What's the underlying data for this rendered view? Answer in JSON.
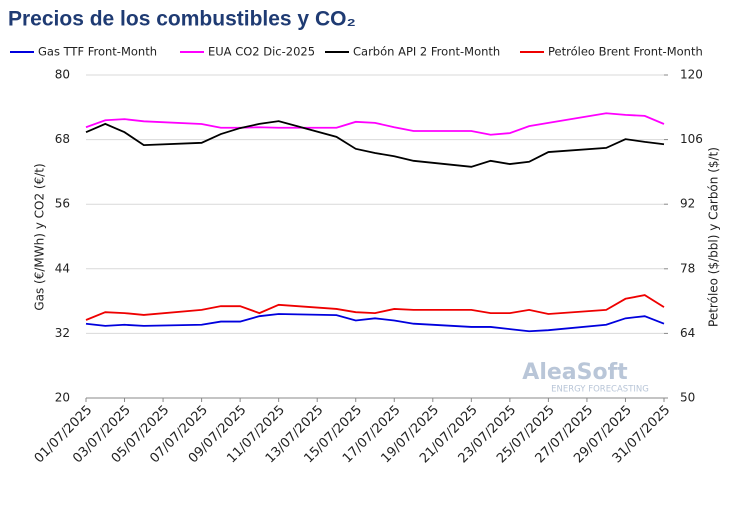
{
  "chart_data": {
    "type": "line",
    "title": "Precios de los combustibles y CO₂",
    "ylabel": "Gas (€/MWh) y CO2 (€/t)",
    "y2label": "Petróleo ($/bbl) y Carbón ($/t)",
    "watermark": [
      "AleaSoft",
      "ENERGY FORECASTING"
    ],
    "x": [
      "01/07/2025",
      "02/07/2025",
      "03/07/2025",
      "04/07/2025",
      "07/07/2025",
      "08/07/2025",
      "09/07/2025",
      "10/07/2025",
      "11/07/2025",
      "14/07/2025",
      "15/07/2025",
      "16/07/2025",
      "17/07/2025",
      "18/07/2025",
      "21/07/2025",
      "22/07/2025",
      "23/07/2025",
      "24/07/2025",
      "25/07/2025",
      "28/07/2025",
      "29/07/2025",
      "30/07/2025",
      "31/07/2025"
    ],
    "xticks": [
      "01/07/2025",
      "03/07/2025",
      "05/07/2025",
      "07/07/2025",
      "09/07/2025",
      "11/07/2025",
      "13/07/2025",
      "15/07/2025",
      "17/07/2025",
      "19/07/2025",
      "21/07/2025",
      "23/07/2025",
      "25/07/2025",
      "27/07/2025",
      "29/07/2025",
      "31/07/2025"
    ],
    "ylim": [
      20,
      80
    ],
    "yticks": [
      20,
      32,
      44,
      56,
      68,
      80
    ],
    "y2lim": [
      50,
      120
    ],
    "y2ticks": [
      50,
      64,
      78,
      92,
      106,
      120
    ],
    "series": [
      {
        "name": "Gas TTF Front-Month",
        "color": "#0000dd",
        "values": [
          33.8,
          33.4,
          33.6,
          33.4,
          33.6,
          34.2,
          34.2,
          35.2,
          35.6,
          35.4,
          34.4,
          34.8,
          34.4,
          33.8,
          33.2,
          33.2,
          32.8,
          32.4,
          32.6,
          33.6,
          34.8,
          35.2,
          33.8
        ]
      },
      {
        "name": "EUA CO2 Dic-2025",
        "color": "#ff00ff",
        "values": [
          70.3,
          71.6,
          71.8,
          71.4,
          70.9,
          70.2,
          70.2,
          70.3,
          70.2,
          70.2,
          71.3,
          71.1,
          70.3,
          69.6,
          69.6,
          68.9,
          69.2,
          70.5,
          71.1,
          72.9,
          72.6,
          72.4,
          70.9
        ]
      },
      {
        "name": "Carbón API 2 Front-Month",
        "color": "#000000",
        "axis": "y2",
        "values": [
          107.6,
          109.4,
          107.6,
          104.8,
          105.3,
          107.2,
          108.5,
          109.4,
          110,
          106.6,
          104,
          103.1,
          102.4,
          101.4,
          100.1,
          101.4,
          100.7,
          101.2,
          103.3,
          104.2,
          106.1,
          105.5,
          105
        ]
      },
      {
        "name": "Petróleo Brent Front-Month",
        "color": "#ee0000",
        "axis": "y2",
        "values": [
          66.9,
          68.6,
          68.4,
          68,
          69.1,
          69.9,
          69.9,
          68.4,
          70.2,
          69.3,
          68.6,
          68.4,
          69.3,
          69.1,
          69.1,
          68.4,
          68.4,
          69.1,
          68.2,
          69.1,
          71.5,
          72.3,
          69.7
        ]
      }
    ]
  }
}
